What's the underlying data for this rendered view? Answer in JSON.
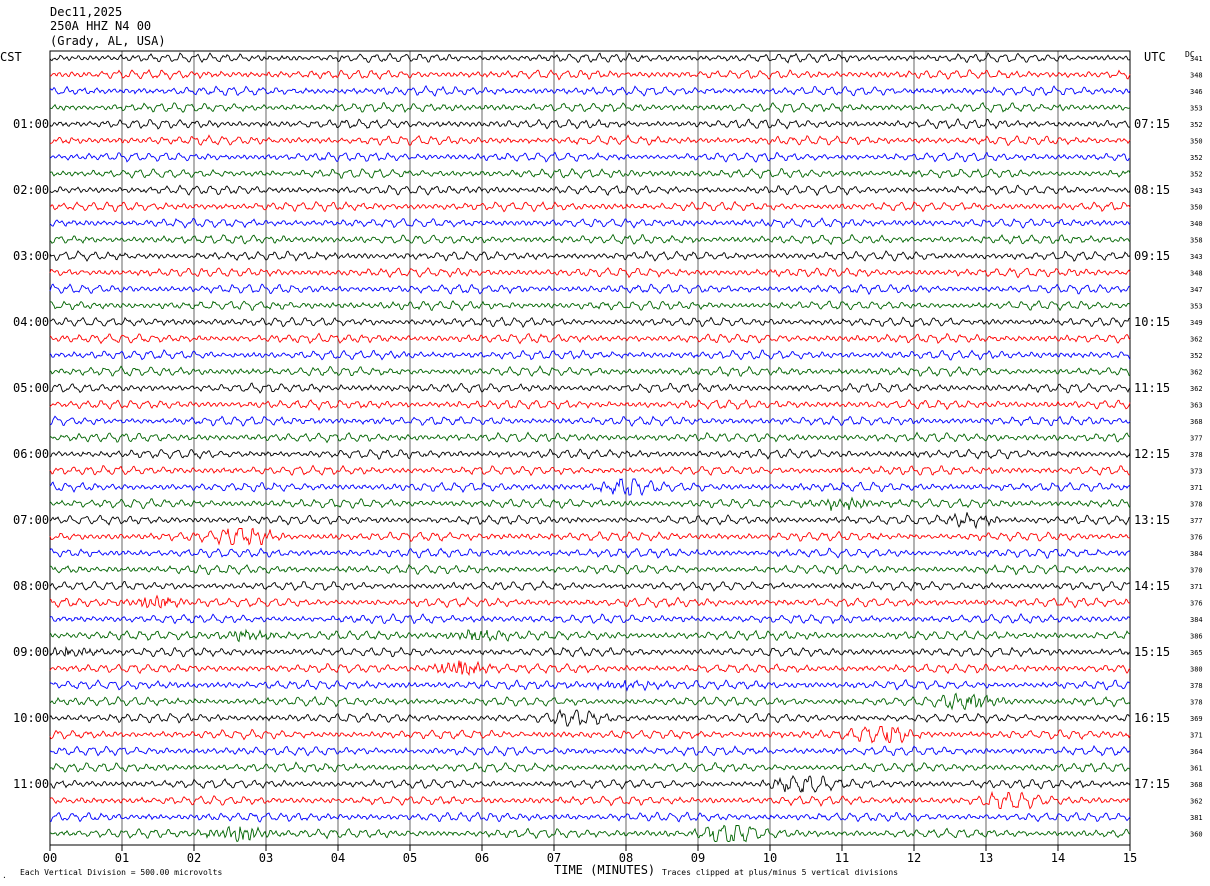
{
  "header": {
    "date": "Dec11,2025",
    "station": "250A HHZ N4 00",
    "location": "(Grady, AL, USA)"
  },
  "left_tz": "CST",
  "right_tz": "UTC",
  "dc_label": "DC",
  "footer": {
    "scale_note": "Each Vertical Division =  500.00 microvolts",
    "clip_note": "Traces clipped at plus/minus 5 vertical divisions",
    "x_title": "TIME (MINUTES)"
  },
  "colors": {
    "black": "#000000",
    "red": "#ff0000",
    "blue": "#0000ff",
    "green": "#006400",
    "grid": "#000000"
  },
  "chart_data": {
    "type": "line",
    "title": "250A HHZ N4 00",
    "xlabel": "TIME (MINUTES)",
    "ylabel": "",
    "xlim": [
      0,
      15
    ],
    "x_ticks": [
      "00",
      "01",
      "02",
      "03",
      "04",
      "05",
      "06",
      "07",
      "08",
      "09",
      "10",
      "11",
      "12",
      "13",
      "14",
      "15"
    ],
    "line_minutes": 15,
    "trace_count": 48,
    "color_cycle": [
      "black",
      "red",
      "blue",
      "green"
    ],
    "grid": true,
    "cst_labels": [
      "01:00",
      "02:00",
      "03:00",
      "04:00",
      "05:00",
      "06:00",
      "07:00",
      "08:00",
      "09:00",
      "10:00",
      "11:00"
    ],
    "utc_labels": [
      "07:15",
      "08:15",
      "09:15",
      "10:15",
      "11:15",
      "12:15",
      "13:15",
      "14:15",
      "15:15",
      "16:15",
      "17:15"
    ],
    "dc_values": [
      "341",
      "348",
      "346",
      "353",
      "352",
      "350",
      "352",
      "352",
      "343",
      "350",
      "340",
      "358",
      "343",
      "348",
      "347",
      "353",
      "349",
      "362",
      "352",
      "362",
      "362",
      "363",
      "368",
      "377",
      "378",
      "373",
      "371",
      "378",
      "377",
      "376",
      "384",
      "370",
      "371",
      "376",
      "384",
      "386",
      "365",
      "380",
      "378",
      "378",
      "369",
      "371",
      "364",
      "361",
      "368",
      "362",
      "381",
      "360"
    ],
    "events": [
      {
        "trace": 29,
        "minute": 2.7,
        "amplitude": 2.0
      },
      {
        "trace": 33,
        "minute": 1.5,
        "amplitude": 1.4
      },
      {
        "trace": 35,
        "minute": 2.7,
        "amplitude": 1.2
      },
      {
        "trace": 35,
        "minute": 5.9,
        "amplitude": 1.6
      },
      {
        "trace": 36,
        "minute": 0.3,
        "amplitude": 1.2
      },
      {
        "trace": 37,
        "minute": 5.7,
        "amplitude": 2.0
      },
      {
        "trace": 38,
        "minute": 8.0,
        "amplitude": 1.2
      },
      {
        "trace": 39,
        "minute": 12.8,
        "amplitude": 2.0
      },
      {
        "trace": 40,
        "minute": 7.3,
        "amplitude": 1.2
      },
      {
        "trace": 41,
        "minute": 11.6,
        "amplitude": 1.8
      },
      {
        "trace": 44,
        "minute": 10.4,
        "amplitude": 1.8
      },
      {
        "trace": 45,
        "minute": 13.3,
        "amplitude": 1.2
      },
      {
        "trace": 47,
        "minute": 2.6,
        "amplitude": 1.6
      },
      {
        "trace": 47,
        "minute": 9.4,
        "amplitude": 1.8
      },
      {
        "trace": 26,
        "minute": 8.0,
        "amplitude": 1.4
      },
      {
        "trace": 27,
        "minute": 11.0,
        "amplitude": 1.2
      },
      {
        "trace": 28,
        "minute": 12.8,
        "amplitude": 1.0
      }
    ]
  }
}
